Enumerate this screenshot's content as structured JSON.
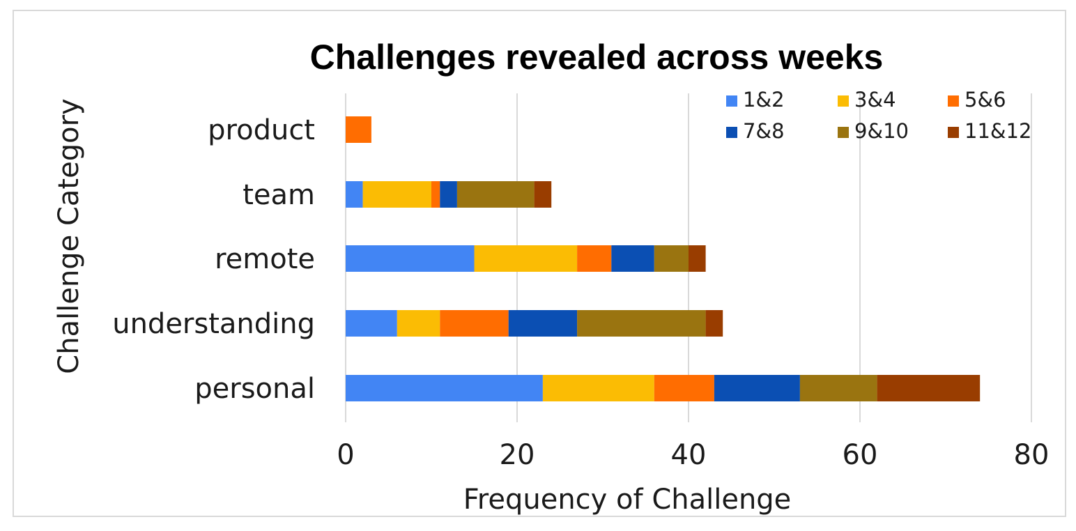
{
  "chart_data": {
    "type": "bar",
    "orientation": "horizontal",
    "stacked": true,
    "title": "Challenges revealed across weeks",
    "xlabel": "Frequency of Challenge",
    "ylabel": "Challenge Category",
    "xlim": [
      0,
      80
    ],
    "xticks": [
      "0",
      "20",
      "40",
      "60",
      "80"
    ],
    "grid": "vertical",
    "legend_position": "top-right",
    "categories": [
      "product",
      "team",
      "remote",
      "understanding",
      "personal"
    ],
    "series": [
      {
        "name": "1&2",
        "color": "#4285f4",
        "values": [
          0,
          2,
          15,
          6,
          23
        ]
      },
      {
        "name": "3&4",
        "color": "#fbbc04",
        "values": [
          0,
          8,
          12,
          5,
          13
        ]
      },
      {
        "name": "5&6",
        "color": "#ff6d01",
        "values": [
          3,
          1,
          4,
          8,
          7
        ]
      },
      {
        "name": "7&8",
        "color": "#0b4fb3",
        "values": [
          0,
          2,
          5,
          8,
          10
        ]
      },
      {
        "name": "9&10",
        "color": "#9a7410",
        "values": [
          0,
          9,
          4,
          15,
          9
        ]
      },
      {
        "name": "11&12",
        "color": "#993d00",
        "values": [
          0,
          2,
          2,
          2,
          12
        ]
      }
    ]
  }
}
